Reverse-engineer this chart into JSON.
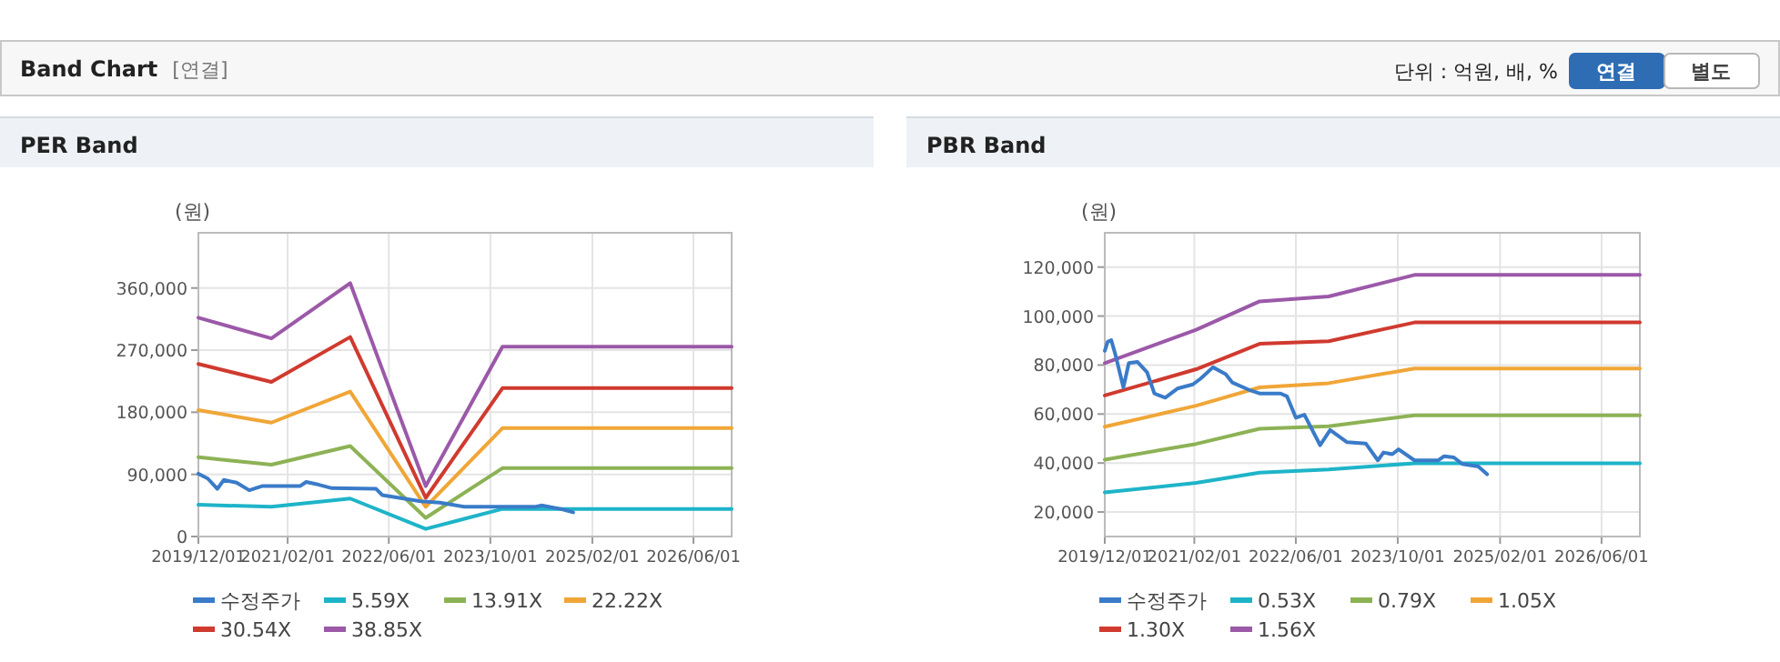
{
  "chart_data": [
    {
      "type": "other",
      "title": "Band Chart",
      "subtitle": "[연결]",
      "annotations": [
        "단위 : 억원, 배, %",
        "연결",
        "별도"
      ]
    },
    {
      "type": "line",
      "title": "PER Band",
      "ylabel": "(원)",
      "xlim": [
        "2019-12-01",
        "2026-12-01"
      ],
      "ylim": [
        0,
        440000
      ],
      "grid": true,
      "legend": "bottom",
      "xticks": [
        {
          "value": "2019-12-01",
          "label": "2019/12/01"
        },
        {
          "value": "2021-02-01",
          "label": "2021/02/01"
        },
        {
          "value": "2022-06-01",
          "label": "2022/06/01"
        },
        {
          "value": "2023-10-01",
          "label": "2023/10/01"
        },
        {
          "value": "2025-02-01",
          "label": "2025/02/01"
        },
        {
          "value": "2026-06-01",
          "label": "2026/06/01"
        }
      ],
      "yticks": [
        0,
        {
          "value": 90000,
          "label": "90,000"
        },
        {
          "value": 180000,
          "label": "180,000"
        },
        {
          "value": 270000,
          "label": "270,000"
        },
        {
          "value": 360000,
          "label": "360,000"
        }
      ],
      "series": [
        {
          "name": "수정주가",
          "color": "#3a7bc8",
          "x": [
            "2019-12-01",
            "2020-01-15",
            "2020-03-01",
            "2020-04-01",
            "2020-06-01",
            "2020-08-01",
            "2020-10-01",
            "2021-04-01",
            "2021-05-01",
            "2021-07-01",
            "2021-09-01",
            "2022-04-01",
            "2022-05-01",
            "2022-11-01",
            "2023-02-01",
            "2023-06-01",
            "2024-05-01",
            "2024-06-01",
            "2024-09-01",
            "2024-11-01"
          ],
          "values": [
            91000,
            84000,
            69000,
            82000,
            78000,
            67000,
            73000,
            73000,
            79000,
            75000,
            70000,
            69000,
            60000,
            51000,
            49000,
            43000,
            43000,
            45000,
            40000,
            35000
          ]
        },
        {
          "name": "5.59X",
          "color": "#1eb4c8",
          "x": [
            "2019-12-01",
            "2020-11-15",
            "2021-11-28",
            "2022-11-25",
            "2023-11-28",
            "2026-12-01"
          ],
          "values": [
            46000,
            43000,
            55000,
            11000,
            40000,
            40000
          ]
        },
        {
          "name": "13.91X",
          "color": "#8db255",
          "x": [
            "2019-12-01",
            "2020-11-15",
            "2021-11-28",
            "2022-11-25",
            "2023-11-28",
            "2026-12-01"
          ],
          "values": [
            115000,
            104000,
            131000,
            27000,
            99000,
            99000
          ]
        },
        {
          "name": "22.22X",
          "color": "#f0a637",
          "x": [
            "2019-12-01",
            "2020-11-15",
            "2021-11-28",
            "2022-11-25",
            "2023-11-28",
            "2026-12-01"
          ],
          "values": [
            183000,
            165000,
            210000,
            43000,
            157000,
            157000
          ]
        },
        {
          "name": "30.54X",
          "color": "#d03a2f",
          "x": [
            "2019-12-01",
            "2020-11-15",
            "2021-11-28",
            "2022-11-25",
            "2023-11-28",
            "2026-12-01"
          ],
          "values": [
            250000,
            224000,
            289000,
            56000,
            215000,
            215000
          ]
        },
        {
          "name": "38.85X",
          "color": "#9b59a8",
          "x": [
            "2019-12-01",
            "2020-11-15",
            "2021-11-28",
            "2022-11-25",
            "2023-11-28",
            "2026-12-01"
          ],
          "values": [
            317000,
            287000,
            367000,
            73000,
            275000,
            275000
          ]
        }
      ]
    },
    {
      "type": "line",
      "title": "PBR Band",
      "ylabel": "(원)",
      "xlim": [
        "2019-12-01",
        "2026-12-01"
      ],
      "ylim": [
        10000,
        134000
      ],
      "grid": true,
      "legend": "bottom",
      "xticks": [
        {
          "value": "2019-12-01",
          "label": "2019/12/01"
        },
        {
          "value": "2021-02-01",
          "label": "2021/02/01"
        },
        {
          "value": "2022-06-01",
          "label": "2022/06/01"
        },
        {
          "value": "2023-10-01",
          "label": "2023/10/01"
        },
        {
          "value": "2025-02-01",
          "label": "2025/02/01"
        },
        {
          "value": "2026-06-01",
          "label": "2026/06/01"
        }
      ],
      "yticks": [
        {
          "value": 20000,
          "label": "20,000"
        },
        {
          "value": 40000,
          "label": "40,000"
        },
        {
          "value": 60000,
          "label": "60,000"
        },
        {
          "value": 80000,
          "label": "80,000"
        },
        {
          "value": 100000,
          "label": "100,000"
        },
        {
          "value": 120000,
          "label": "120,000"
        }
      ],
      "series": [
        {
          "name": "수정주가",
          "color": "#3a7bc8",
          "x": [
            "2019-12-01",
            "2019-12-15",
            "2020-01-01",
            "2020-01-20",
            "2020-02-28",
            "2020-03-25",
            "2020-05-05",
            "2020-06-20",
            "2020-07-25",
            "2020-09-15",
            "2020-11-12",
            "2021-01-25",
            "2021-03-05",
            "2021-05-01",
            "2021-07-01",
            "2021-08-01",
            "2021-10-28",
            "2021-12-10",
            "2022-03-20",
            "2022-04-20",
            "2022-06-01",
            "2022-07-12",
            "2022-09-25",
            "2022-11-12",
            "2023-02-01",
            "2023-05-01",
            "2023-06-28",
            "2023-07-25",
            "2023-09-05",
            "2023-10-05",
            "2023-12-20",
            "2024-04-12",
            "2024-05-10",
            "2024-06-25",
            "2024-08-05",
            "2024-10-20",
            "2024-12-01"
          ],
          "values": [
            85800,
            89500,
            90200,
            84500,
            70900,
            80800,
            81300,
            77100,
            68400,
            66700,
            70400,
            72100,
            74600,
            79100,
            76300,
            72900,
            69600,
            68400,
            68400,
            67200,
            58500,
            59700,
            47300,
            53500,
            48500,
            48000,
            41100,
            44300,
            43600,
            45600,
            41100,
            41100,
            42800,
            42300,
            39600,
            38600,
            35400
          ]
        },
        {
          "name": "0.53X",
          "color": "#1eb4c8",
          "x": [
            "2019-12-01",
            "2021-02-10",
            "2021-12-10",
            "2022-11-05",
            "2023-12-20",
            "2026-12-01"
          ],
          "values": [
            28000,
            31900,
            36100,
            37400,
            39900,
            39900
          ]
        },
        {
          "name": "0.79X",
          "color": "#8db255",
          "x": [
            "2019-12-01",
            "2021-02-10",
            "2021-12-10",
            "2022-11-05",
            "2023-12-20",
            "2026-12-01"
          ],
          "values": [
            41400,
            47800,
            54000,
            55000,
            59500,
            59500
          ]
        },
        {
          "name": "1.05X",
          "color": "#f0a637",
          "x": [
            "2019-12-01",
            "2021-02-10",
            "2021-12-10",
            "2022-11-05",
            "2023-12-20",
            "2026-12-01"
          ],
          "values": [
            54800,
            63400,
            70900,
            72600,
            78600,
            78600
          ]
        },
        {
          "name": "1.30X",
          "color": "#d03a2f",
          "x": [
            "2019-12-01",
            "2021-02-10",
            "2021-12-10",
            "2022-11-05",
            "2023-12-20",
            "2026-12-01"
          ],
          "values": [
            67600,
            78300,
            88700,
            89700,
            97400,
            97400
          ]
        },
        {
          "name": "1.56X",
          "color": "#9b59a8",
          "x": [
            "2019-12-01",
            "2021-02-10",
            "2021-12-10",
            "2022-11-05",
            "2023-12-20",
            "2026-12-01"
          ],
          "values": [
            80800,
            94400,
            106000,
            108000,
            116800,
            116800
          ]
        }
      ]
    }
  ]
}
